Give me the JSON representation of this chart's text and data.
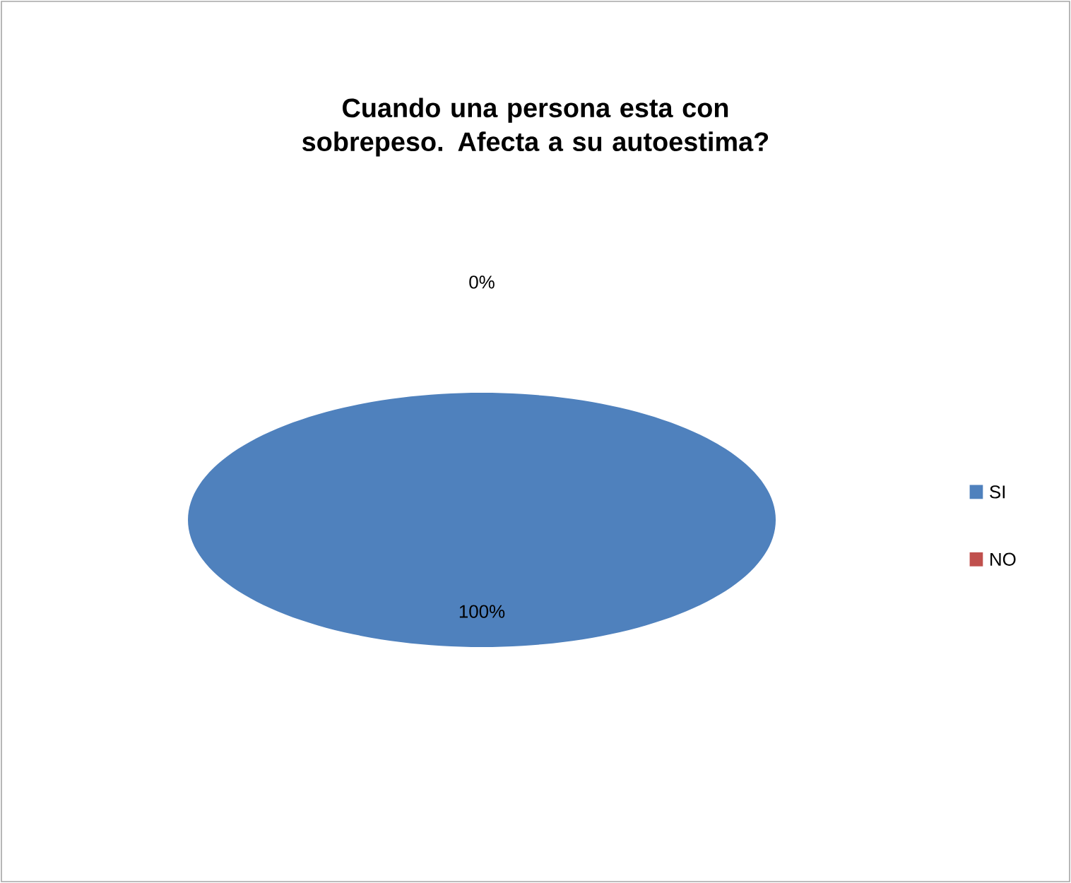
{
  "chart_data": {
    "type": "pie",
    "title": "Cuando una persona esta con sobrepeso. Afecta a su autoestima?",
    "categories": [
      "SI",
      "NO"
    ],
    "values": [
      100,
      0
    ],
    "colors": [
      "#4f81bd",
      "#c0504d"
    ],
    "value_labels": [
      "100%",
      "0%"
    ],
    "legend": "right"
  }
}
